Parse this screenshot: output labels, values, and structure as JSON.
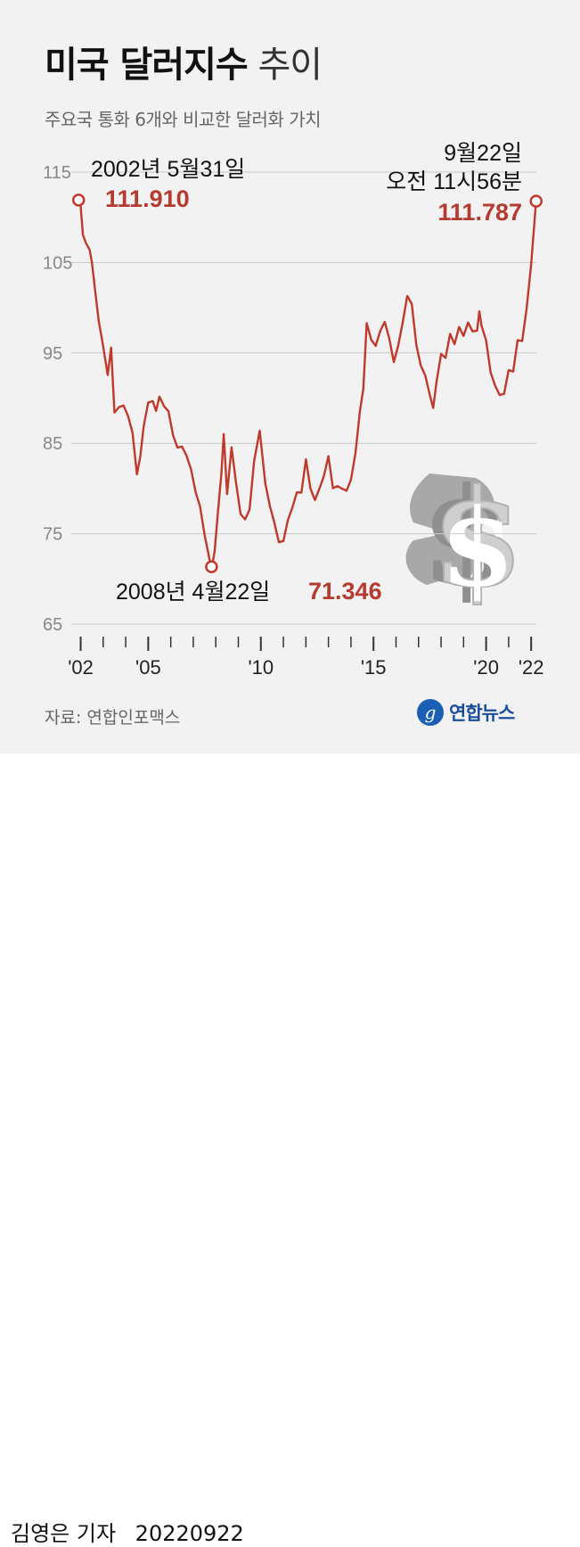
{
  "header": {
    "title_bold": "미국 달러지수",
    "title_light": "추이",
    "subtitle": "주요국 통화 6개와 비교한 달러화 가치"
  },
  "chart_data": {
    "type": "line",
    "title": "미국 달러지수 추이",
    "subtitle": "주요국 통화 6개와 비교한 달러화 가치",
    "xlabel": "",
    "ylabel": "",
    "ylim": [
      65,
      115
    ],
    "xlim": [
      2002.4,
      2022.73
    ],
    "y_ticks": [
      "115",
      "105",
      "95",
      "85",
      "75",
      "65"
    ],
    "y_tick_values": [
      115,
      105,
      95,
      85,
      75,
      65
    ],
    "x_ticks": [
      "'02",
      "'05",
      "'10",
      "'15",
      "'20",
      "'22"
    ],
    "x_tick_values": [
      2002,
      2005,
      2010,
      2015,
      2020,
      2022
    ],
    "grid": true,
    "line_color": "#c0392b",
    "series": [
      {
        "x": [
          2002.41,
          2002.5,
          2002.6,
          2002.75,
          2002.9,
          2003.0,
          2003.15,
          2003.3,
          2003.5,
          2003.7,
          2003.85,
          2004.0,
          2004.2,
          2004.4,
          2004.6,
          2004.8,
          2005.0,
          2005.15,
          2005.3,
          2005.5,
          2005.7,
          2005.85,
          2006.0,
          2006.2,
          2006.4,
          2006.6,
          2006.8,
          2007.0,
          2007.2,
          2007.4,
          2007.6,
          2007.8,
          2008.0,
          2008.15,
          2008.31,
          2008.45,
          2008.6,
          2008.75,
          2008.85,
          2009.0,
          2009.2,
          2009.4,
          2009.6,
          2009.8,
          2010.0,
          2010.2,
          2010.45,
          2010.7,
          2010.9,
          2011.1,
          2011.3,
          2011.5,
          2011.7,
          2011.9,
          2012.1,
          2012.3,
          2012.5,
          2012.7,
          2012.9,
          2013.1,
          2013.3,
          2013.5,
          2013.7,
          2013.9,
          2014.1,
          2014.3,
          2014.5,
          2014.7,
          2014.9,
          2015.05,
          2015.2,
          2015.4,
          2015.6,
          2015.8,
          2016.0,
          2016.2,
          2016.4,
          2016.6,
          2016.8,
          2017.0,
          2017.2,
          2017.4,
          2017.6,
          2017.8,
          2018.0,
          2018.15,
          2018.3,
          2018.5,
          2018.7,
          2018.9,
          2019.1,
          2019.3,
          2019.5,
          2019.7,
          2019.9,
          2020.1,
          2020.2,
          2020.3,
          2020.5,
          2020.7,
          2020.9,
          2021.1,
          2021.3,
          2021.5,
          2021.7,
          2021.9,
          2022.1,
          2022.3,
          2022.5,
          2022.6,
          2022.72
        ],
        "values": [
          111.91,
          111.0,
          108.5,
          106.5,
          107.0,
          104.5,
          102.0,
          98.5,
          95.5,
          93.0,
          95.0,
          89.0,
          88.5,
          89.5,
          88.0,
          86.0,
          82.0,
          83.0,
          87.5,
          89.0,
          90.0,
          88.5,
          90.0,
          89.5,
          88.0,
          86.5,
          84.0,
          85.0,
          83.5,
          82.0,
          80.0,
          77.5,
          75.5,
          72.5,
          71.346,
          73.0,
          77.5,
          82.0,
          85.5,
          80.0,
          84.0,
          81.0,
          77.0,
          76.5,
          78.0,
          82.5,
          87.0,
          80.0,
          78.5,
          76.0,
          74.0,
          74.5,
          76.0,
          78.5,
          79.0,
          80.0,
          83.0,
          80.0,
          79.0,
          79.5,
          82.0,
          83.0,
          80.5,
          80.0,
          80.0,
          80.0,
          80.5,
          84.5,
          88.0,
          91.5,
          98.0,
          96.5,
          96.0,
          97.0,
          99.0,
          96.0,
          94.5,
          95.5,
          98.5,
          101.5,
          100.0,
          96.5,
          93.0,
          93.0,
          90.0,
          89.0,
          92.0,
          94.5,
          95.0,
          96.5,
          96.5,
          97.5,
          97.0,
          98.5,
          97.0,
          98.0,
          99.0,
          98.5,
          96.0,
          93.0,
          91.5,
          90.0,
          91.0,
          92.5,
          93.5,
          96.0,
          96.5,
          100.0,
          104.5,
          108.5,
          111.787
        ]
      }
    ],
    "annotations": [
      {
        "x": 2002.41,
        "y": 111.91,
        "date": "2002년 5월31일",
        "value": "111.910"
      },
      {
        "x": 2008.31,
        "y": 71.346,
        "date": "2008년 4월22일",
        "value": "71.346"
      },
      {
        "x": 2022.72,
        "y": 111.787,
        "date_line1": "9월22일",
        "date_line2": "오전 11시56분",
        "value": "111.787"
      }
    ]
  },
  "footer": {
    "source": "자료: 연합인포맥스",
    "logo_text": "연합뉴스",
    "logo_letter": "g",
    "reporter": "김영은 기자",
    "date": "20220922"
  }
}
